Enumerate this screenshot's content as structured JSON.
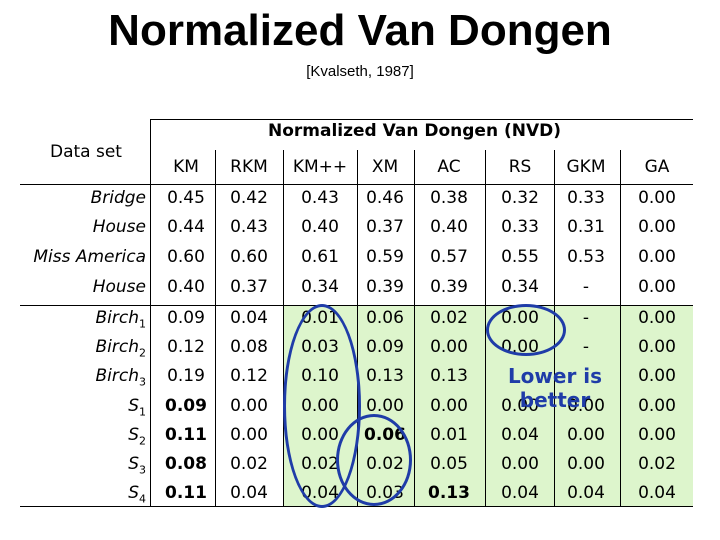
{
  "title": "Normalized Van Dongen",
  "citation": "[Kvalseth, 1987]",
  "table": {
    "dataset_header": "Data set",
    "group_header": "Normalized Van Dongen (NVD)",
    "columns": [
      "KM",
      "RKM",
      "KM++",
      "XM",
      "AC",
      "RS",
      "GKM",
      "GA"
    ],
    "rows": [
      {
        "label": "Bridge",
        "sub": "",
        "values": [
          "0.45",
          "0.42",
          "0.43",
          "0.46",
          "0.38",
          "0.32",
          "0.33",
          "0.00"
        ]
      },
      {
        "label": "House",
        "sub": "",
        "values": [
          "0.44",
          "0.43",
          "0.40",
          "0.37",
          "0.40",
          "0.33",
          "0.31",
          "0.00"
        ]
      },
      {
        "label": "Miss America",
        "sub": "",
        "values": [
          "0.60",
          "0.60",
          "0.61",
          "0.59",
          "0.57",
          "0.55",
          "0.53",
          "0.00"
        ]
      },
      {
        "label": "House",
        "sub": "",
        "values": [
          "0.40",
          "0.37",
          "0.34",
          "0.39",
          "0.39",
          "0.34",
          "-",
          "0.00"
        ]
      },
      {
        "label": "Birch",
        "sub": "1",
        "values": [
          "0.09",
          "0.04",
          "0.01",
          "0.06",
          "0.02",
          "0.00",
          "-",
          "0.00"
        ]
      },
      {
        "label": "Birch",
        "sub": "2",
        "values": [
          "0.12",
          "0.08",
          "0.03",
          "0.09",
          "0.00",
          "0.00",
          "-",
          "0.00"
        ]
      },
      {
        "label": "Birch",
        "sub": "3",
        "values": [
          "0.19",
          "0.12",
          "0.10",
          "0.13",
          "0.13",
          "",
          "",
          "0.00"
        ]
      },
      {
        "label": "S",
        "sub": "1",
        "values": [
          "0.09",
          "0.00",
          "0.00",
          "0.00",
          "0.00",
          "0.00",
          "0.00",
          "0.00"
        ]
      },
      {
        "label": "S",
        "sub": "2",
        "values": [
          "0.11",
          "0.00",
          "0.00",
          "0.06",
          "0.01",
          "0.04",
          "0.00",
          "0.00"
        ]
      },
      {
        "label": "S",
        "sub": "3",
        "values": [
          "0.08",
          "0.02",
          "0.02",
          "0.02",
          "0.05",
          "0.00",
          "0.00",
          "0.02"
        ]
      },
      {
        "label": "S",
        "sub": "4",
        "values": [
          "0.11",
          "0.04",
          "0.04",
          "0.03",
          "0.13",
          "0.04",
          "0.04",
          "0.04"
        ]
      }
    ],
    "bold_cells": [
      [
        7,
        0
      ],
      [
        8,
        0
      ],
      [
        9,
        0
      ],
      [
        10,
        0
      ],
      [
        8,
        3
      ],
      [
        10,
        4
      ]
    ]
  },
  "annotation": {
    "line1": "Lower is",
    "line2": "better"
  },
  "colors": {
    "highlight": "#ddf5cc",
    "annotation": "#1f3ca8"
  }
}
